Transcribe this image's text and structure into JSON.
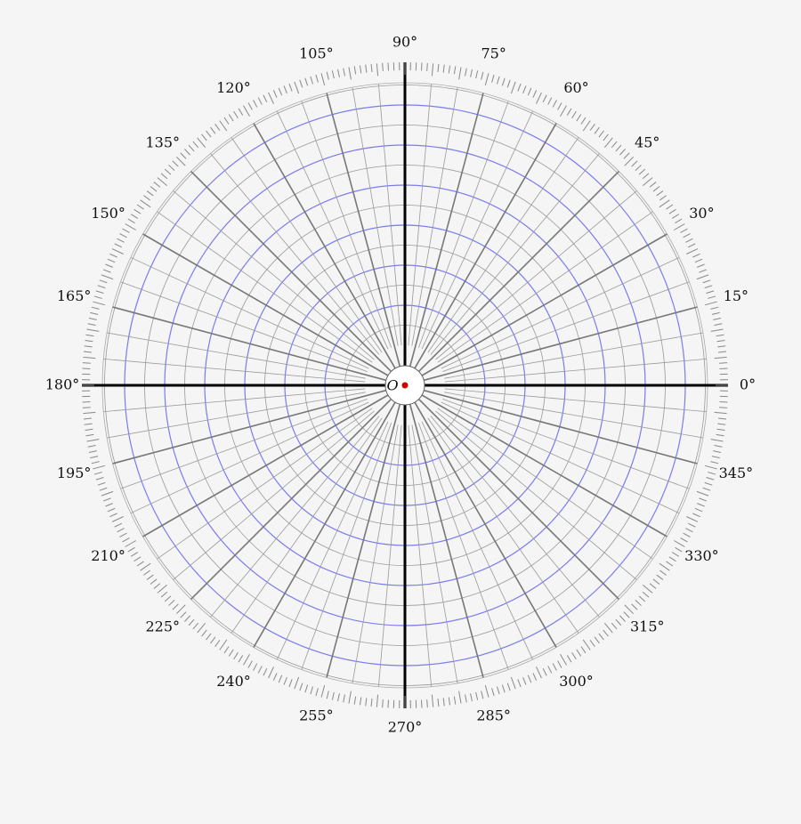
{
  "origin_label": "O",
  "angle_labels": [
    "0°",
    "15°",
    "30°",
    "45°",
    "60°",
    "75°",
    "90°",
    "105°",
    "120°",
    "135°",
    "150°",
    "165°",
    "180°",
    "195°",
    "210°",
    "225°",
    "240°",
    "255°",
    "270°",
    "285°",
    "300°",
    "315°",
    "330°",
    "345°"
  ]
}
